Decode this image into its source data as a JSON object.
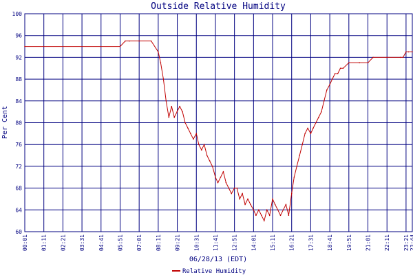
{
  "chart_data": {
    "type": "line",
    "title": "Outside Relative Humidity",
    "xlabel": "06/28/13 (EDT)",
    "ylabel": "Per Cent",
    "ylim": [
      60,
      100
    ],
    "yticks": [
      "60",
      "64",
      "68",
      "72",
      "76",
      "80",
      "84",
      "88",
      "92",
      "96",
      "100"
    ],
    "xticks": [
      "00:01",
      "01:11",
      "02:21",
      "03:31",
      "04:41",
      "05:51",
      "07:01",
      "08:11",
      "09:21",
      "10:31",
      "11:41",
      "12:51",
      "14:01",
      "15:11",
      "16:21",
      "17:31",
      "18:41",
      "19:51",
      "21:01",
      "22:11",
      "23:21",
      "23:44"
    ],
    "grid": true,
    "legend_position": "bottom-center",
    "colors": {
      "series": "#c00000",
      "grid": "#000080",
      "text": "#000080"
    },
    "series": [
      {
        "name": "Relative Humidity",
        "x": [
          "00:01",
          "05:51",
          "06:10",
          "06:25",
          "07:01",
          "07:45",
          "08:11",
          "08:20",
          "08:30",
          "08:40",
          "08:50",
          "09:00",
          "09:10",
          "09:20",
          "09:30",
          "09:40",
          "09:50",
          "10:00",
          "10:10",
          "10:20",
          "10:31",
          "10:40",
          "10:50",
          "11:00",
          "11:10",
          "11:20",
          "11:30",
          "11:41",
          "11:50",
          "12:00",
          "12:10",
          "12:20",
          "12:30",
          "12:40",
          "12:51",
          "13:00",
          "13:10",
          "13:20",
          "13:30",
          "13:40",
          "13:50",
          "14:01",
          "14:10",
          "14:20",
          "14:30",
          "14:40",
          "14:50",
          "15:00",
          "15:11",
          "15:20",
          "15:30",
          "15:40",
          "15:50",
          "16:00",
          "16:10",
          "16:21",
          "16:30",
          "16:40",
          "16:50",
          "17:00",
          "17:10",
          "17:20",
          "17:31",
          "17:40",
          "17:50",
          "18:00",
          "18:10",
          "18:20",
          "18:30",
          "18:41",
          "18:50",
          "19:00",
          "19:10",
          "19:20",
          "19:30",
          "19:51",
          "20:30",
          "21:01",
          "21:20",
          "22:11",
          "23:00",
          "23:10",
          "23:21",
          "23:30",
          "23:44"
        ],
        "y": [
          94,
          94,
          95,
          95,
          95,
          95,
          93,
          91,
          88,
          84,
          81,
          83,
          81,
          82,
          83,
          82,
          80,
          79,
          78,
          77,
          78,
          76,
          75,
          76,
          74,
          73,
          72,
          70,
          69,
          70,
          71,
          69,
          68,
          67,
          68,
          68,
          66,
          67,
          65,
          66,
          65,
          64,
          63,
          64,
          63,
          62,
          64,
          63,
          66,
          65,
          64,
          63,
          64,
          65,
          63,
          67,
          70,
          72,
          74,
          76,
          78,
          79,
          78,
          79,
          80,
          81,
          82,
          84,
          86,
          87,
          88,
          89,
          89,
          90,
          90,
          91,
          91,
          91,
          92,
          92,
          92,
          92,
          93,
          93,
          93
        ]
      }
    ]
  }
}
